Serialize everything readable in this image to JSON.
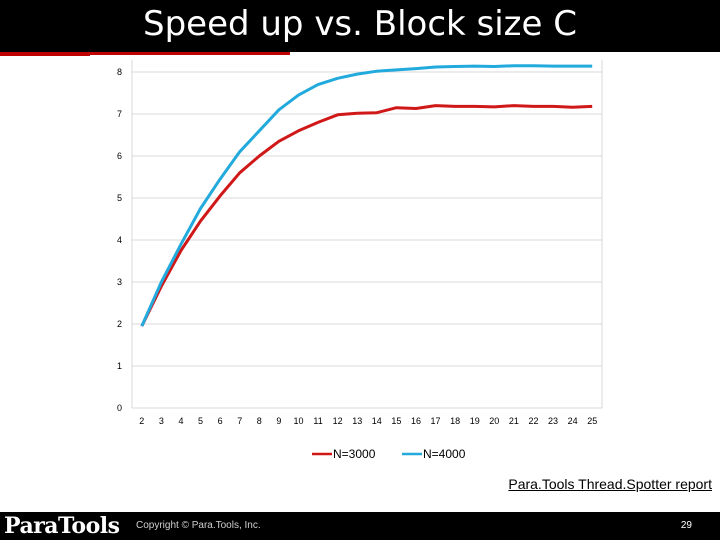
{
  "slide": {
    "title": "Speed up vs. Block size C",
    "report_link": "Para.Tools Thread.Spotter report",
    "copyright": "Copyright © Para.Tools, Inc.",
    "page_number": "29",
    "logo_text": "ParaTools"
  },
  "colors": {
    "title_bg": "#000000",
    "accent_red": "#c00000",
    "series_3000": "#d01818",
    "series_4000": "#22aadd"
  },
  "chart_data": {
    "type": "line",
    "title": "",
    "xlabel": "",
    "ylabel": "",
    "x": [
      2,
      3,
      4,
      5,
      6,
      7,
      8,
      9,
      10,
      11,
      12,
      13,
      14,
      15,
      16,
      17,
      18,
      19,
      20,
      21,
      22,
      23,
      24,
      25
    ],
    "ylim": [
      0,
      8
    ],
    "yticks": [
      0,
      1,
      2,
      3,
      4,
      5,
      6,
      7,
      8
    ],
    "grid": true,
    "legend_position": "bottom",
    "series": [
      {
        "name": "N=3000",
        "color": "#d01818",
        "values": [
          1.95,
          2.9,
          3.75,
          4.45,
          5.05,
          5.6,
          6.0,
          6.35,
          6.6,
          6.8,
          6.98,
          7.02,
          7.03,
          7.15,
          7.13,
          7.2,
          7.18,
          7.18,
          7.17,
          7.2,
          7.18,
          7.18,
          7.16,
          7.18
        ]
      },
      {
        "name": "N=4000",
        "color": "#22aadd",
        "values": [
          1.95,
          3.0,
          3.9,
          4.75,
          5.45,
          6.1,
          6.6,
          7.1,
          7.45,
          7.7,
          7.85,
          7.95,
          8.02,
          8.05,
          8.08,
          8.12,
          8.13,
          8.14,
          8.13,
          8.15,
          8.15,
          8.14,
          8.14,
          8.14
        ]
      }
    ]
  }
}
